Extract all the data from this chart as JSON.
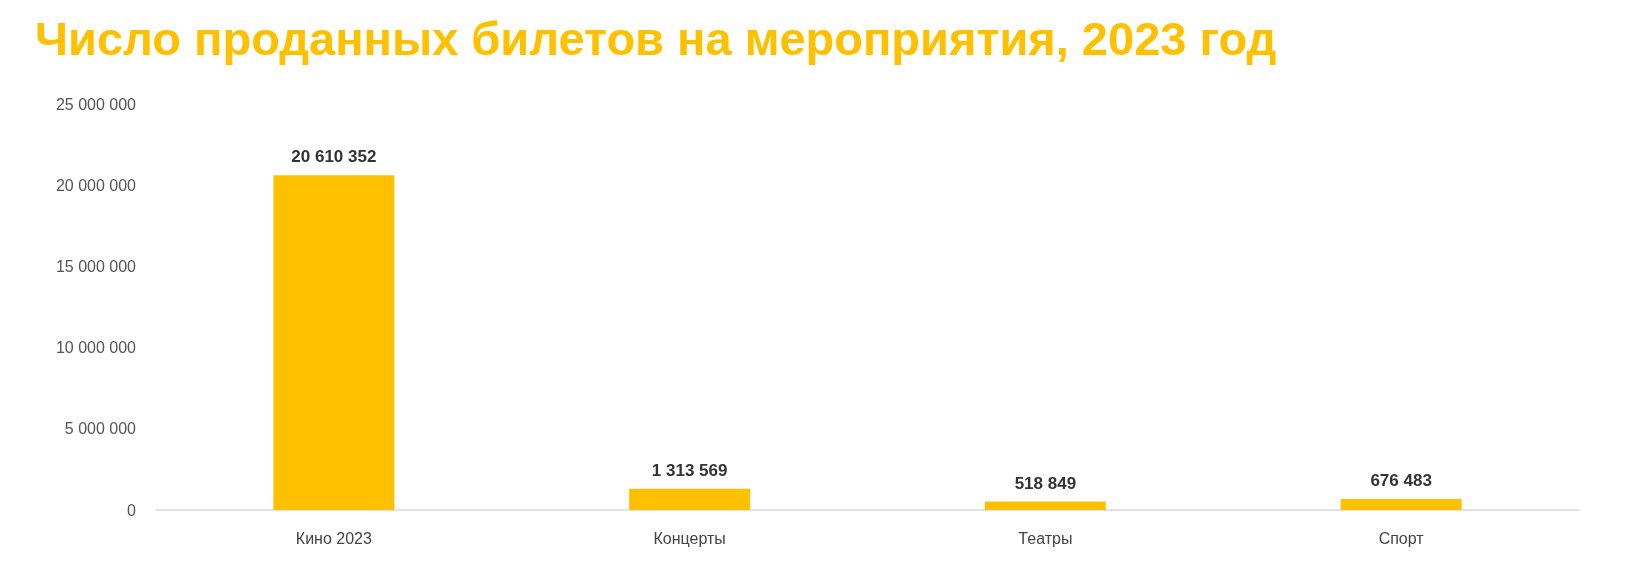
{
  "chart_data": {
    "type": "bar",
    "title": "Число проданных билетов на мероприятия, 2023 год",
    "categories": [
      "Кино 2023",
      "Концерты",
      "Театры",
      "Спорт"
    ],
    "values": [
      20610352,
      1313569,
      518849,
      676483
    ],
    "value_labels": [
      "20 610 352",
      "1 313 569",
      "518 849",
      "676 483"
    ],
    "color": "#ffc000",
    "ylim": [
      0,
      25000000
    ],
    "yticks": [
      {
        "value": 0,
        "label": "0"
      },
      {
        "value": 5000000,
        "label": "5 000 000"
      },
      {
        "value": 10000000,
        "label": "10 000 000"
      },
      {
        "value": 15000000,
        "label": "15 000 000"
      },
      {
        "value": 20000000,
        "label": "20 000 000"
      },
      {
        "value": 25000000,
        "label": "25 000 000"
      }
    ],
    "grid": false
  }
}
